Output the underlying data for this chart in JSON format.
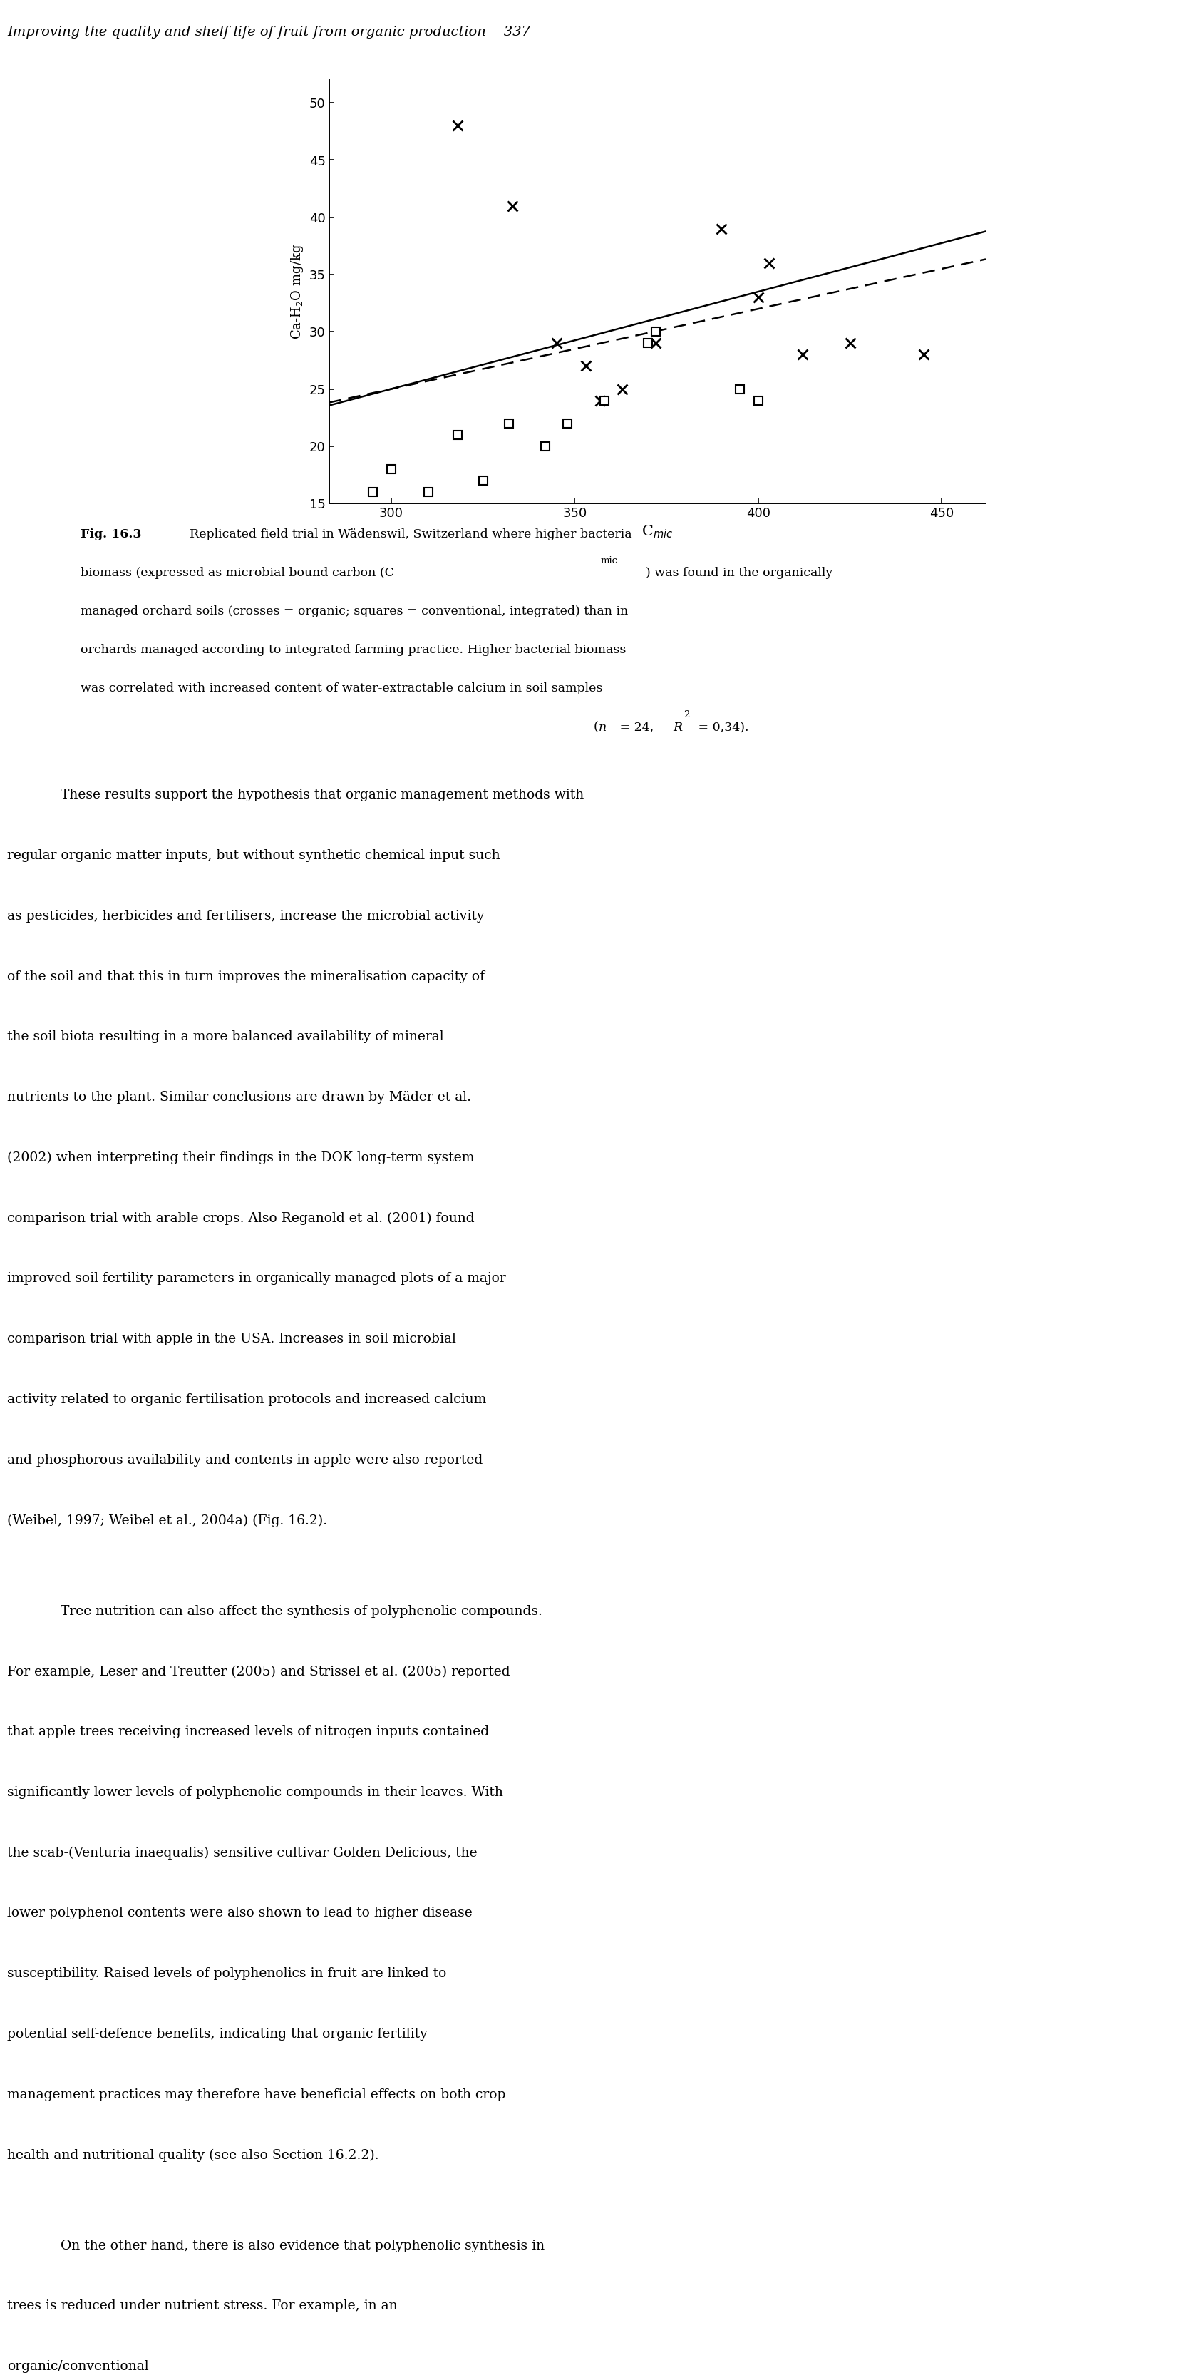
{
  "page_header": "Improving the quality and shelf life of fruit from organic production    337",
  "crosses_x": [
    318,
    333,
    345,
    353,
    357,
    363,
    372,
    390,
    400,
    403,
    412,
    425,
    445
  ],
  "crosses_y": [
    48,
    41,
    29,
    27,
    24,
    25,
    29,
    39,
    33,
    36,
    28,
    29,
    28
  ],
  "squares_x": [
    295,
    300,
    310,
    318,
    325,
    332,
    342,
    348,
    358,
    370,
    372,
    395,
    400
  ],
  "squares_y": [
    16,
    18,
    16,
    21,
    17,
    22,
    20,
    22,
    24,
    29,
    30,
    25,
    24
  ],
  "xlim": [
    283,
    462
  ],
  "ylim": [
    15,
    52
  ],
  "xticks": [
    300,
    350,
    400,
    450
  ],
  "yticks": [
    15,
    20,
    25,
    30,
    35,
    40,
    45,
    50
  ],
  "xlabel": "C$_{mic}$",
  "ylabel": "Ca-H$_2$O mg/kg",
  "solid_slope": 0.085,
  "solid_b": -0.5,
  "dashed_slope": 0.07,
  "dashed_b": 4.0,
  "background_color": "#ffffff"
}
